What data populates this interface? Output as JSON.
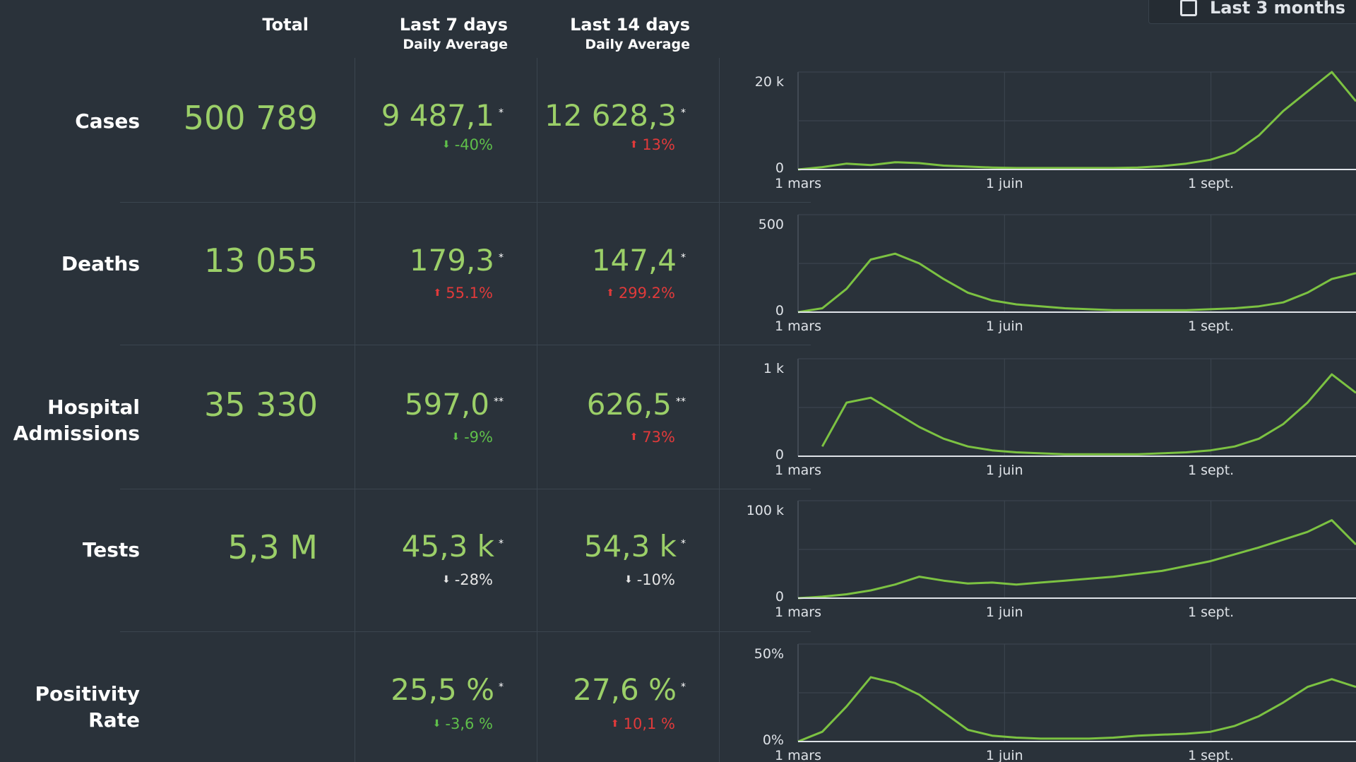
{
  "range_selector": {
    "label": "Last 3 months"
  },
  "header": {
    "total": "Total",
    "last7": "Last 7 days",
    "last7_sub": "Daily Average",
    "last14": "Last 14 days",
    "last14_sub": "Daily Average"
  },
  "rows": [
    {
      "label": "Cases",
      "total": "500 789",
      "avg7": "9 487,1",
      "avg7_mark": "*",
      "avg7_change": "-40%",
      "avg7_dir": "down",
      "avg14": "12 628,3",
      "avg14_mark": "*",
      "avg14_change": "13%",
      "avg14_dir": "up"
    },
    {
      "label": "Deaths",
      "total": "13 055",
      "avg7": "179,3",
      "avg7_mark": "*",
      "avg7_change": "55.1%",
      "avg7_dir": "up",
      "avg14": "147,4",
      "avg14_mark": "*",
      "avg14_change": "299.2%",
      "avg14_dir": "up"
    },
    {
      "label": "Hospital Admissions",
      "label_line1": "Hospital",
      "label_line2": "Admissions",
      "total": "35 330",
      "avg7": "597,0",
      "avg7_mark": "**",
      "avg7_change": "-9%",
      "avg7_dir": "down",
      "avg14": "626,5",
      "avg14_mark": "**",
      "avg14_change": "73%",
      "avg14_dir": "up"
    },
    {
      "label": "Tests",
      "total": "5,3 M",
      "avg7": "45,3 k",
      "avg7_mark": "*",
      "avg7_change": "-28%",
      "avg7_dir": "neutral",
      "avg14": "54,3 k",
      "avg14_mark": "*",
      "avg14_change": "-10%",
      "avg14_dir": "neutral"
    },
    {
      "label": "Positivity Rate",
      "total": "",
      "avg7": "25,5 %",
      "avg7_mark": "*",
      "avg7_change": "-3,6 %",
      "avg7_dir": "down",
      "avg14": "27,6 %",
      "avg14_mark": "*",
      "avg14_change": "10,1 %",
      "avg14_dir": "up"
    }
  ],
  "colors": {
    "line": "#7cc242",
    "positive_number": "#9bcf68",
    "down": "#5fbf4a",
    "up": "#e03a3a"
  },
  "chart_data": [
    {
      "type": "line",
      "series": [
        {
          "values": [
            0,
            500,
            1200,
            900,
            1500,
            1300,
            800,
            600,
            400,
            300,
            300,
            300,
            300,
            300,
            400,
            700,
            1200,
            2000,
            3500,
            7000,
            12000,
            16000,
            20000,
            14000
          ]
        }
      ],
      "ylim": [
        0,
        20000
      ],
      "yticks": [
        "20 k",
        "0"
      ],
      "xticks": [
        "1 mars",
        "1 juin",
        "1 sept."
      ],
      "grid": true
    },
    {
      "type": "line",
      "series": [
        {
          "values": [
            0,
            20,
            120,
            270,
            300,
            250,
            170,
            100,
            60,
            40,
            30,
            20,
            15,
            10,
            10,
            10,
            10,
            15,
            20,
            30,
            50,
            100,
            170,
            200
          ]
        }
      ],
      "ylim": [
        0,
        500
      ],
      "yticks": [
        "500",
        "0"
      ],
      "xticks": [
        "1 mars",
        "1 juin",
        "1 sept."
      ],
      "grid": true
    },
    {
      "type": "line",
      "series": [
        {
          "values": [
            null,
            100,
            550,
            600,
            450,
            300,
            180,
            100,
            60,
            40,
            30,
            20,
            20,
            20,
            20,
            30,
            40,
            60,
            100,
            180,
            330,
            550,
            840,
            650
          ]
        }
      ],
      "ylim": [
        0,
        1000
      ],
      "yticks": [
        "1 k",
        "0"
      ],
      "xticks": [
        "1 mars",
        "1 juin",
        "1 sept."
      ],
      "grid": true
    },
    {
      "type": "line",
      "series": [
        {
          "values": [
            0,
            1500,
            4000,
            8000,
            14000,
            22000,
            18000,
            15000,
            16000,
            14000,
            16000,
            18000,
            20000,
            22000,
            25000,
            28000,
            33000,
            38000,
            45000,
            52000,
            60000,
            68000,
            80000,
            55000
          ]
        }
      ],
      "ylim": [
        0,
        100000
      ],
      "yticks": [
        "100 k",
        "0"
      ],
      "xticks": [
        "1 mars",
        "1 juin",
        "1 sept."
      ],
      "grid": true
    },
    {
      "type": "line",
      "series": [
        {
          "values": [
            0,
            5,
            18,
            33,
            30,
            24,
            15,
            6,
            3,
            2,
            1.5,
            1.5,
            1.5,
            2,
            3,
            3.5,
            4,
            5,
            8,
            13,
            20,
            28,
            32,
            28
          ]
        }
      ],
      "ylim": [
        0,
        50
      ],
      "yticks": [
        "50%",
        "0%"
      ],
      "xticks": [
        "1 mars",
        "1 juin",
        "1 sept."
      ],
      "grid": true
    }
  ]
}
